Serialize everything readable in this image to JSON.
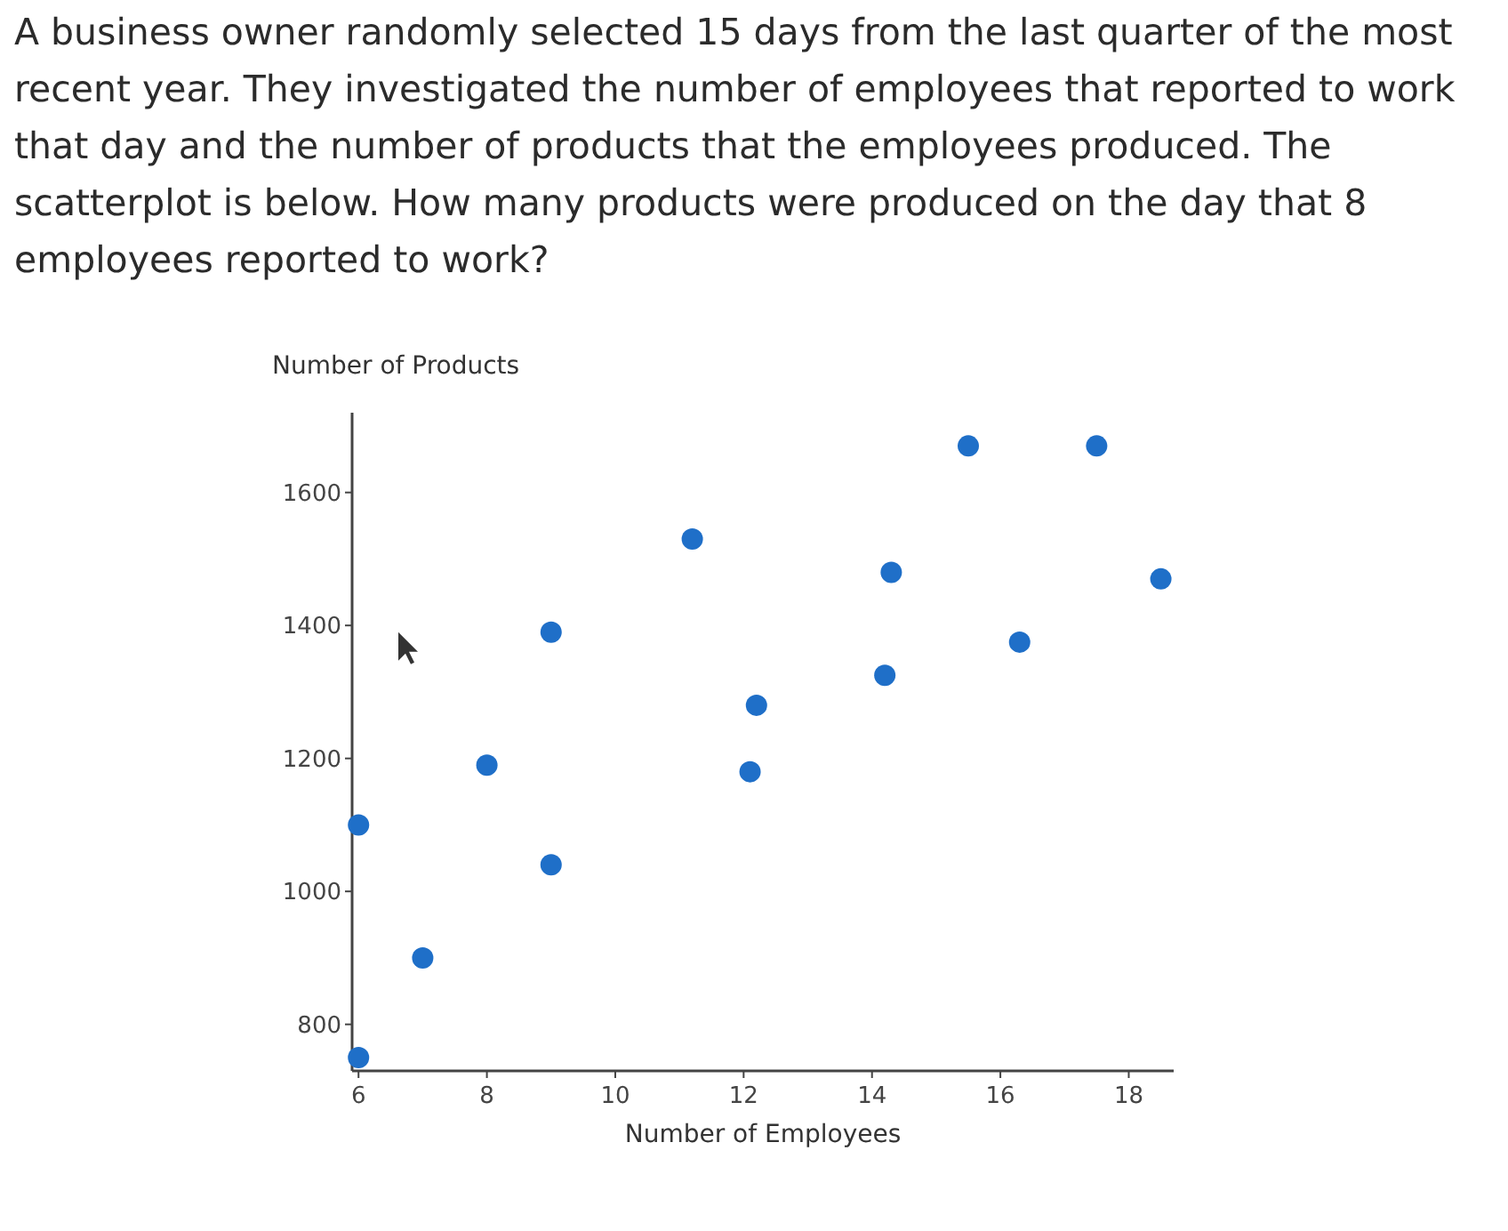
{
  "chart_data": {
    "type": "scatter",
    "title": "A business owner randomly selected 15 days from the last quarter of the most recent year. They investigated the number of employees that reported to work that day and the number of products that the employees produced. The scatterplot is below. How many products were produced on the day that 8 employees reported to work?",
    "xlabel": "Number of Employees",
    "ylabel": "Number of Products",
    "x": [
      6,
      6,
      7,
      8,
      9,
      9,
      11.2,
      12.2,
      12.1,
      14.3,
      14.2,
      15.5,
      16.3,
      17.5,
      18.5
    ],
    "values": [
      1100,
      750,
      900,
      1190,
      1040,
      1390,
      1530,
      1280,
      1180,
      1480,
      1325,
      1670,
      1375,
      1670,
      1470
    ],
    "color": "#1f6fc8",
    "marker": "circle",
    "xlim": [
      5.9,
      18.7
    ],
    "xticks": [
      6,
      8,
      10,
      12,
      14,
      16,
      18
    ],
    "ylim": [
      730,
      1720
    ],
    "yticks": [
      800,
      1000,
      1200,
      1400,
      1600
    ],
    "grid": false
  }
}
